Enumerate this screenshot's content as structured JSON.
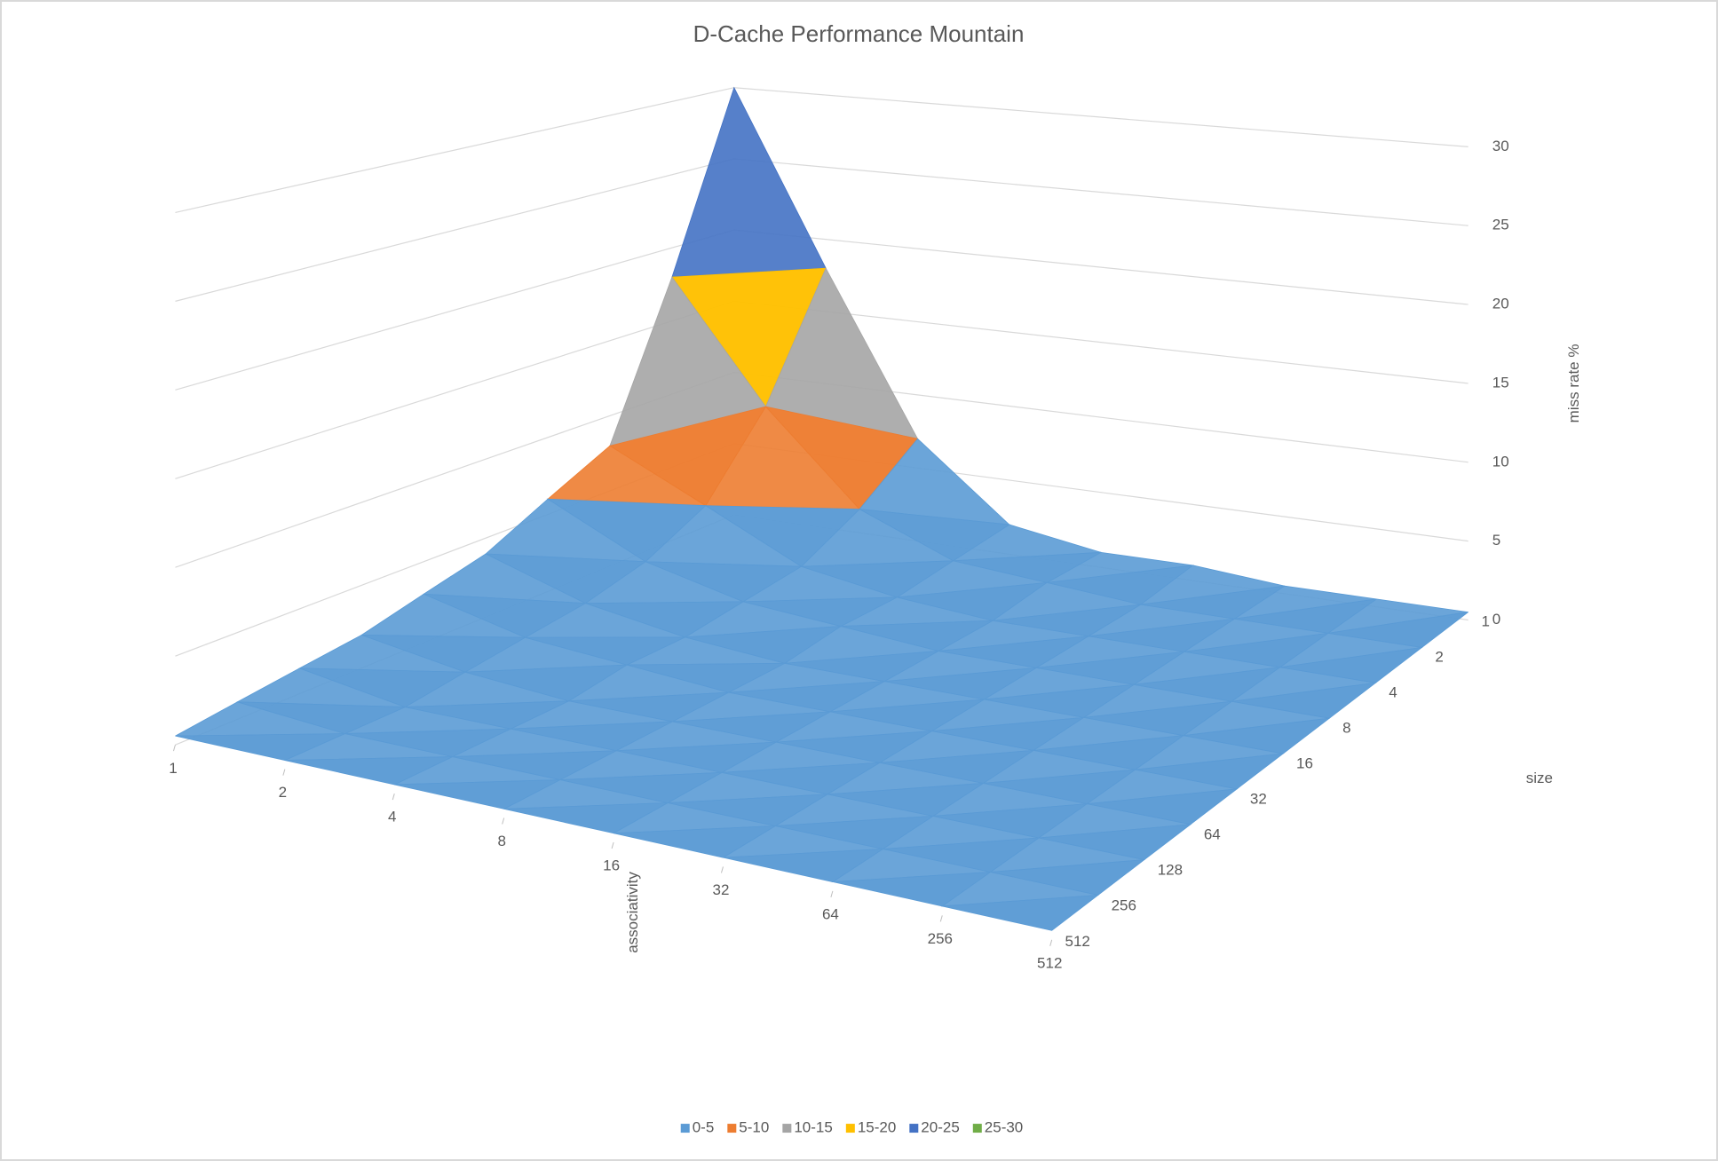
{
  "chart_data": {
    "type": "surface3d",
    "title": "D-Cache Performance Mountain",
    "x_label": "associativity",
    "z_label": "size",
    "y_label": "miss rate %",
    "categories": [
      "1",
      "2",
      "4",
      "8",
      "16",
      "32",
      "64",
      "256",
      "512"
    ],
    "size_categories": [
      "1",
      "2",
      "4",
      "8",
      "16",
      "32",
      "64",
      "128",
      "256",
      "512"
    ],
    "values": [
      [
        30,
        18,
        8,
        6,
        4,
        3,
        2,
        1.5,
        1,
        0.5
      ],
      [
        18,
        10,
        5,
        3,
        2,
        1.5,
        1,
        0.5,
        0.5,
        0.5
      ],
      [
        7,
        4,
        2,
        1.5,
        1,
        1,
        0.5,
        0.5,
        0.5,
        0.5
      ],
      [
        2,
        1.5,
        1,
        1,
        0.5,
        0.5,
        0.5,
        0.5,
        0.5,
        0.5
      ],
      [
        1,
        1,
        0.5,
        0.5,
        0.5,
        0.5,
        0.5,
        0.5,
        0.5,
        0.5
      ],
      [
        1,
        0.5,
        0.5,
        0.5,
        0.5,
        0.5,
        0.5,
        0.5,
        0.5,
        0.5
      ],
      [
        0.5,
        0.5,
        0.5,
        0.5,
        0.5,
        0.5,
        0.5,
        0.5,
        0.5,
        0.5
      ],
      [
        0.5,
        0.5,
        0.5,
        0.5,
        0.5,
        0.5,
        0.5,
        0.5,
        0.5,
        0.5
      ],
      [
        0.5,
        0.5,
        0.5,
        0.5,
        0.5,
        0.5,
        0.5,
        0.5,
        0.5,
        0.5
      ]
    ],
    "ylim": [
      0,
      30
    ],
    "yticks": [
      0,
      5,
      10,
      15,
      20,
      25,
      30
    ],
    "grid": true,
    "legend_position": "bottom",
    "bands": [
      {
        "name": "0-5",
        "color": "#5b9bd5"
      },
      {
        "name": "5-10",
        "color": "#ed7d31"
      },
      {
        "name": "10-15",
        "color": "#a5a5a5"
      },
      {
        "name": "15-20",
        "color": "#ffc000"
      },
      {
        "name": "20-25",
        "color": "#4472c4"
      },
      {
        "name": "25-30",
        "color": "#70ad47"
      }
    ]
  }
}
